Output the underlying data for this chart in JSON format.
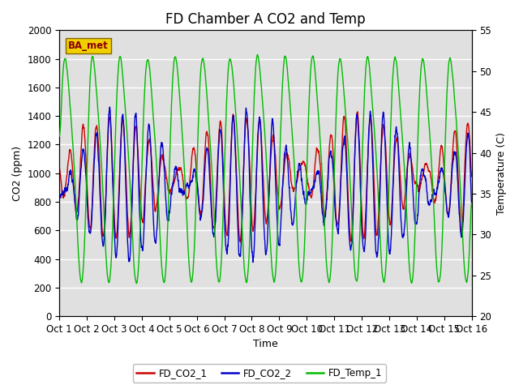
{
  "title": "FD Chamber A CO2 and Temp",
  "xlabel": "Time",
  "ylabel_left": "CO2 (ppm)",
  "ylabel_right": "Temperature (C)",
  "ylim_left": [
    0,
    2000
  ],
  "ylim_right": [
    20,
    55
  ],
  "yticks_left": [
    0,
    200,
    400,
    600,
    800,
    1000,
    1200,
    1400,
    1600,
    1800,
    2000
  ],
  "yticks_right": [
    20,
    25,
    30,
    35,
    40,
    45,
    50,
    55
  ],
  "xtick_labels": [
    "Oct 1",
    "Oct 2",
    "Oct 3",
    "Oct 4",
    "Oct 5",
    "Oct 6",
    "Oct 7",
    "Oct 8",
    "Oct 9",
    "Oct 10",
    "Oct 11",
    "Oct 12",
    "Oct 13",
    "Oct 14",
    "Oct 15",
    "Oct 16"
  ],
  "color_co2_1": "#cc0000",
  "color_co2_2": "#0000cc",
  "color_temp_1": "#00bb00",
  "legend_label_1": "FD_CO2_1",
  "legend_label_2": "FD_CO2_2",
  "legend_label_3": "FD_Temp_1",
  "annotation_text": "BA_met",
  "background_color": "#e0e0e0",
  "title_fontsize": 12,
  "axis_fontsize": 9,
  "tick_fontsize": 8.5,
  "linewidth": 1.0
}
